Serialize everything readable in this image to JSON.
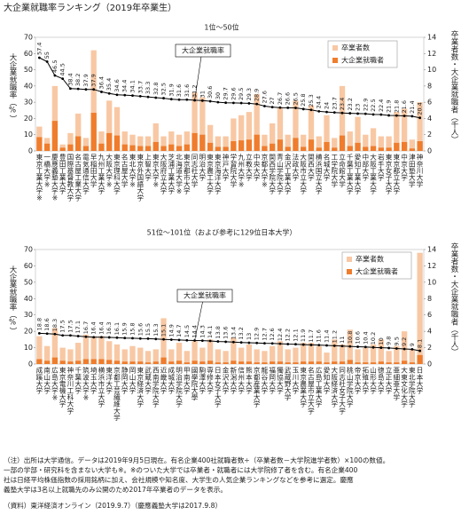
{
  "title": "大企業就職率ランキング（2019年卒業生）",
  "chart_data": [
    {
      "type": "combo",
      "subtitle": "1位〜50位",
      "ylabel": "大企業就職率（%）",
      "y2label": "卒業者数・大企業就職者（千人）",
      "categories": [
        "東京工業大学※",
        "一橋大学※",
        "慶應義塾大学※",
        "豊田工業大学",
        "国際基督教大学",
        "名古屋工業大学",
        "電気通信大学",
        "早稲田大学",
        "九州工業大学",
        "大阪大学※",
        "東京理科大学",
        "名古屋大学",
        "東北大学※",
        "東京外国語大学",
        "上智大学",
        "東京大学※",
        "大阪府立大学",
        "芝浦工業大学",
        "北海道大学※",
        "東京都市大学",
        "同志社大学",
        "明治大学",
        "東京農工大学",
        "東京海洋大学",
        "神戸大学",
        "学習院大学",
        "九州大学※",
        "立教大学",
        "中央大学",
        "京都大学※",
        "関西学院大学",
        "青山学院大学",
        "金沢工業大学",
        "法政大学",
        "大阪市立大学",
        "関西大学",
        "横浜国立大学",
        "名城大学",
        "工学院大学",
        "立命館大学",
        "千葉工業大学",
        "愛知工業大学",
        "中部大学",
        "大阪工業大学",
        "岩手大学",
        "東京女子大学",
        "東京都立大学",
        "中京大学",
        "津田塾大学",
        "神奈川大学"
      ],
      "series": [
        {
          "name": "大企業就職率",
          "type": "line",
          "color": "#000000",
          "values": [
            57.4,
            55.0,
            46.5,
            44.5,
            38.4,
            38.2,
            37.9,
            37.9,
            36.4,
            35.4,
            34.6,
            34.4,
            34.1,
            33.7,
            33.3,
            32.8,
            32.5,
            31.9,
            31.6,
            31.6,
            31.2,
            31.0,
            30.6,
            30.0,
            29.7,
            29.6,
            29.5,
            29.3,
            28.9,
            27.6,
            27.0,
            26.7,
            26.6,
            26.5,
            25.8,
            25.3,
            24.4,
            24.0,
            23.7,
            23.4,
            23.2,
            23.0,
            22.9,
            22.5,
            22.4,
            21.9,
            21.8,
            21.6,
            21.4,
            20.4
          ]
        },
        {
          "name": "卒業者数",
          "type": "bar",
          "axis": "y2",
          "color": "#f8c8a4",
          "values": [
            3.0,
            1.6,
            8.0,
            0.8,
            2.2,
            4.6,
            1.6,
            12.4,
            2.4,
            6.2,
            5.4,
            2.4,
            2.0,
            1.8,
            1.8,
            3.4,
            1.8,
            2.4,
            2.0,
            2.4,
            7.2,
            6.6,
            3.2,
            1.8,
            1.8,
            4.0,
            4.4,
            4.8,
            7.0,
            2.0,
            3.4,
            5.4,
            2.0,
            6.2,
            2.0,
            5.6,
            1.8,
            4.4,
            1.6,
            8.0,
            2.4,
            4.2,
            2.0,
            2.8,
            1.8,
            1.8,
            4.8,
            5.2,
            1.4,
            6.0
          ]
        },
        {
          "name": "大企業就職者",
          "type": "bar",
          "axis": "y2",
          "color": "#ef7d2d",
          "values": [
            1.7,
            0.9,
            3.7,
            0.4,
            0.8,
            1.8,
            0.6,
            4.7,
            0.9,
            2.2,
            1.9,
            0.8,
            0.7,
            0.6,
            0.6,
            1.1,
            0.6,
            0.8,
            0.6,
            0.8,
            2.2,
            2.0,
            1.0,
            0.5,
            0.5,
            1.2,
            1.3,
            1.4,
            2.0,
            0.6,
            0.9,
            1.4,
            0.5,
            1.6,
            0.5,
            1.4,
            0.4,
            1.1,
            0.4,
            1.9,
            0.6,
            1.0,
            0.5,
            0.6,
            0.4,
            0.4,
            1.0,
            1.1,
            0.3,
            1.2
          ]
        }
      ],
      "ylim": [
        0,
        70
      ],
      "yticks": [
        0,
        10,
        20,
        30,
        40,
        50,
        60,
        70
      ],
      "y2lim": [
        0,
        14
      ],
      "y2ticks": [
        0,
        2,
        4,
        6,
        8,
        10,
        12,
        14
      ]
    },
    {
      "type": "combo",
      "subtitle": "51位〜101位（および参考に129位日本大学）",
      "ylabel": "大企業就職率（%）",
      "y2label": "卒業者数・大企業就職者（千人）",
      "categories": [
        "成蹊大学",
        "南山大学",
        "広島大学※",
        "東京電機大学",
        "神奈川工科大学",
        "千葉大学",
        "筑波大学※",
        "埼玉大学",
        "横浜市立大学",
        "東洋大学",
        "京都工芸繊維大学",
        "静岡大学",
        "岡山大学",
        "東京経済大学",
        "武蔵大学",
        "西南学院大学",
        "近畿大学",
        "成城大学",
        "明治学院大学",
        "甲南大学",
        "國學院大學",
        "駒澤大学",
        "専修大学",
        "日本女子大学",
        "金沢大学",
        "新潟大学",
        "信州大学",
        "熊本大学",
        "京都産業大学",
        "龍谷大学",
        "福岡大学",
        "獨協大学",
        "武蔵野大学",
        "玉川大学",
        "東京農業大学",
        "名古屋市立大学",
        "広島工業大学",
        "愛知大学",
        "大阪経済大学",
        "同志社女子大学",
        "桃山学院大学",
        "帝京大学",
        "拓殖大学",
        "山形大学",
        "徳島大学",
        "立正大学",
        "亜細亜大学",
        "大東文化大学",
        "東北学院大学",
        "日本大学"
      ],
      "series": [
        {
          "name": "大企業就職率",
          "type": "line",
          "color": "#000000",
          "values": [
            18.8,
            18.6,
            18.3,
            17.5,
            17.5,
            17.1,
            16.7,
            16.4,
            16.4,
            16.3,
            16.1,
            15.9,
            15.8,
            15.6,
            15.5,
            15.3,
            15.1,
            14.9,
            14.7,
            14.5,
            14.4,
            14.3,
            14.1,
            13.8,
            13.6,
            13.4,
            13.2,
            13.0,
            12.9,
            12.7,
            12.6,
            12.4,
            12.2,
            12.1,
            11.9,
            11.7,
            11.6,
            11.4,
            11.2,
            11.0,
            10.8,
            10.6,
            10.4,
            10.2,
            10.0,
            9.8,
            9.5,
            9.2,
            9.0,
            8.1
          ]
        },
        {
          "name": "卒業者数",
          "type": "bar",
          "axis": "y2",
          "color": "#f8c8a4",
          "values": [
            3.4,
            2.2,
            4.4,
            2.0,
            1.8,
            2.6,
            3.6,
            3.4,
            3.4,
            2.8,
            2.4,
            1.8,
            2.2,
            2.0,
            1.6,
            1.8,
            5.6,
            1.8,
            2.6,
            1.6,
            2.8,
            2.0,
            3.0,
            1.8,
            1.6,
            3.2,
            2.0,
            2.4,
            1.8,
            1.6,
            2.2,
            2.8,
            1.8,
            2.0,
            2.6,
            2.6,
            2.2,
            1.4,
            3.0,
            2.4,
            4.2,
            1.8,
            2.0,
            2.4,
            3.0,
            1.6,
            2.2,
            4.0,
            1.8,
            13.6
          ]
        },
        {
          "name": "大企業就職者",
          "type": "bar",
          "axis": "y2",
          "color": "#ef7d2d",
          "values": [
            0.6,
            0.4,
            0.8,
            0.4,
            0.3,
            0.4,
            0.6,
            0.6,
            0.6,
            0.5,
            0.4,
            0.3,
            0.3,
            0.3,
            0.2,
            0.3,
            0.8,
            0.3,
            0.4,
            0.2,
            0.4,
            0.3,
            0.4,
            0.2,
            0.2,
            0.4,
            0.3,
            0.3,
            0.2,
            0.2,
            0.3,
            0.3,
            0.2,
            0.2,
            0.3,
            0.3,
            0.3,
            0.2,
            0.3,
            0.3,
            0.5,
            0.2,
            0.2,
            0.2,
            0.3,
            0.2,
            0.2,
            0.4,
            0.2,
            1.1
          ]
        }
      ],
      "ylim": [
        0,
        70
      ],
      "yticks": [
        0,
        10,
        20,
        30,
        40,
        50,
        60,
        70
      ],
      "y2lim": [
        0,
        14
      ],
      "y2ticks": [
        0,
        2,
        4,
        6,
        8,
        10,
        12,
        14
      ]
    }
  ],
  "notes": [
    "（注）出所は大学通信。データは2019年9月5日現在。有名企業400社就職者数÷（卒業者数－大学院進学者数）×100の数値。",
    "一部の学部・研究科を含まない大学も※。※のついた大学では卒業者・就職者には大学院修了者を含む。有名企業400",
    "社は日経平均株価指数の採用銘柄に加え、会社規模や知名度、大学生の人気企業ランキングなどを参考に選定。慶應",
    "義塾大学は3名以上就職先のみ公開のため2017年卒業者のデータを表示。"
  ],
  "source": "（資料）東洋経済オンライン（2019.9.7）（慶應義塾大学は2017.9.8）"
}
